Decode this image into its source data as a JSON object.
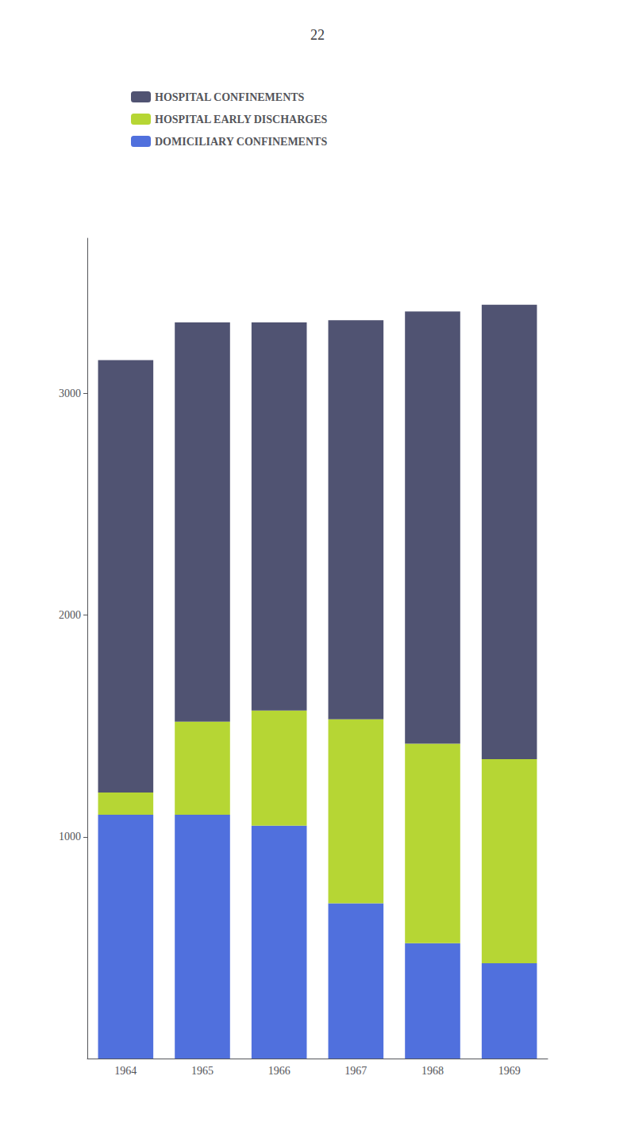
{
  "chart_data": {
    "type": "bar",
    "title": "22",
    "categories": [
      "1964",
      "1965",
      "1966",
      "1967",
      "1968",
      "1969"
    ],
    "series": [
      {
        "name": "DOMICILIARY CONFINEMENTS",
        "values": [
          1100,
          1100,
          1050,
          700,
          520,
          430
        ]
      },
      {
        "name": "HOSPITAL EARLY DISCHARGES",
        "values": [
          100,
          420,
          520,
          830,
          900,
          920
        ]
      },
      {
        "name": "HOSPITAL CONFINEMENTS",
        "values": [
          1950,
          1800,
          1750,
          1800,
          1950,
          2050
        ]
      }
    ],
    "stacked": true,
    "ylim": [
      0,
      3700
    ],
    "yticks": [
      1000,
      2000,
      3000
    ],
    "grid": false,
    "legend": "upper left"
  }
}
